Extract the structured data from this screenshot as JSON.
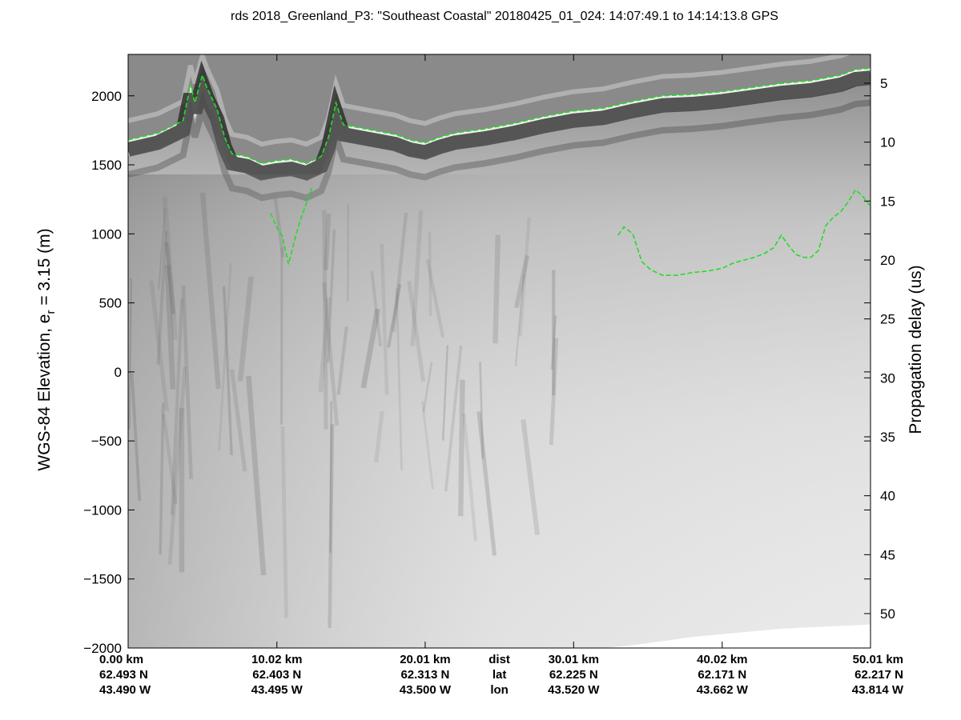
{
  "colors": {
    "background": "#ffffff",
    "radar_dark": "#1a1a1a",
    "radar_light": "#efefef",
    "layer_pick": "#22dd22",
    "axes": "#000000"
  },
  "chart_data": {
    "type": "heatmap",
    "title": "rds 2018_Greenland_P3: \"Southeast Coastal\"  20180425_01_024: 14:07:49.1 to 14:14:13.8 GPS",
    "ylabel_main": "WGS-84 Elevation, e",
    "ylabel_sub": "r",
    "ylabel_rest": " = 3.15 (m)",
    "y2label": "Propagation delay (us)",
    "xlim_km": [
      0,
      50.01
    ],
    "ylim": [
      -2000,
      2300
    ],
    "y_ticks": [
      2000,
      1500,
      1000,
      500,
      0,
      -500,
      -1000,
      -1500,
      -2000
    ],
    "y_tick_labels": [
      "2000",
      "1500",
      "1000",
      "500",
      "0",
      "−500",
      "−1000",
      "−1500",
      "−2000"
    ],
    "y2_ticks": [
      5,
      10,
      15,
      20,
      25,
      30,
      35,
      40,
      45,
      50
    ],
    "y2_tick_labels": [
      "5",
      "10",
      "15",
      "20",
      "25",
      "30",
      "35",
      "40",
      "45",
      "50"
    ],
    "bottom_rows": {
      "columns": [
        {
          "dist": "0.00 km",
          "lat": "62.493 N",
          "lon": "43.490 W",
          "km": 0
        },
        {
          "dist": "10.02 km",
          "lat": "62.403 N",
          "lon": "43.495 W",
          "km": 10.02
        },
        {
          "dist": "20.01 km",
          "lat": "62.313 N",
          "lon": "43.500 W",
          "km": 20.01
        },
        {
          "dist": "30.01 km",
          "lat": "62.225 N",
          "lon": "43.520 W",
          "km": 30.01
        },
        {
          "dist": "40.02 km",
          "lat": "62.171 N",
          "lon": "43.662 W",
          "km": 40.02
        },
        {
          "dist": "50.01 km",
          "lat": "62.217 N",
          "lon": "43.814 W",
          "km": 50.01
        }
      ],
      "row_labels": [
        "dist",
        "lat",
        "lon"
      ]
    },
    "surface_pick": {
      "x_km": [
        0,
        2,
        3.7,
        4.2,
        4.5,
        5.0,
        5.3,
        6.0,
        6.5,
        7.0,
        8,
        9,
        10,
        11,
        12,
        13,
        13.5,
        14.0,
        14.5,
        16,
        18,
        19,
        20,
        21,
        22,
        24,
        26,
        28,
        30,
        32,
        34,
        36,
        38,
        40,
        42,
        44,
        46,
        48,
        49,
        50.01
      ],
      "y_m": [
        1680,
        1730,
        1820,
        2080,
        1950,
        2150,
        2060,
        1900,
        1700,
        1580,
        1560,
        1510,
        1530,
        1540,
        1510,
        1560,
        1700,
        1950,
        1790,
        1760,
        1720,
        1680,
        1660,
        1700,
        1730,
        1760,
        1800,
        1850,
        1890,
        1910,
        1960,
        2000,
        2010,
        2030,
        2060,
        2090,
        2110,
        2150,
        2190,
        2200
      ]
    },
    "bed_pick_left": {
      "x_km": [
        9.6,
        10.0,
        10.4,
        10.8,
        11.2,
        11.6,
        12.0,
        12.4
      ],
      "y_m": [
        1150,
        1050,
        980,
        780,
        950,
        1100,
        1220,
        1340
      ]
    },
    "bed_pick_right": {
      "x_km": [
        33.0,
        33.4,
        34.0,
        34.6,
        35.2,
        36.0,
        37.0,
        38.0,
        39.0,
        40.0,
        40.8,
        41.5,
        42.2,
        42.9,
        43.5,
        44.0,
        44.6,
        45.0,
        45.5,
        46.0,
        46.5,
        47.0,
        47.5,
        48.0,
        48.5,
        49.0,
        49.5,
        50.01
      ],
      "y_m": [
        990,
        1050,
        1000,
        800,
        740,
        700,
        700,
        720,
        730,
        750,
        790,
        810,
        830,
        860,
        900,
        990,
        900,
        850,
        830,
        830,
        880,
        1060,
        1120,
        1160,
        1230,
        1320,
        1270,
        1200
      ]
    },
    "bottom_edge": {
      "x_km": [
        0,
        5,
        10,
        15,
        20,
        25,
        30,
        32,
        34,
        36,
        38,
        40,
        42,
        44,
        46,
        48,
        50.01
      ],
      "y_m": [
        -2000,
        -2000,
        -2000,
        -2000,
        -2000,
        -2000,
        -2000,
        -2000,
        -1980,
        -1950,
        -1920,
        -1900,
        -1880,
        -1860,
        -1850,
        -1840,
        -1830
      ]
    }
  }
}
